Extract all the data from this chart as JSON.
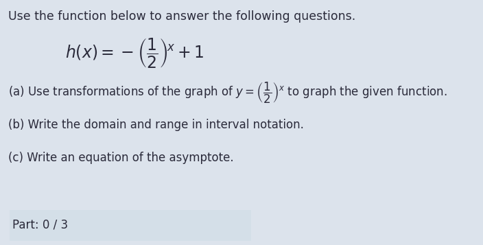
{
  "title_text": "Use the function below to answer the following questions.",
  "part_a_prefix": "(a) Use transformations of the graph of ",
  "part_a_math": "$y=\\left(\\dfrac{1}{2}\\right)^x$",
  "part_a_suffix": " to graph the given function.",
  "part_b": "(b) Write the domain and range in interval notation.",
  "part_c": "(c) Write an equation of the asymptote.",
  "part_label": "Part: 0 / 3",
  "main_bg": "#dce3ec",
  "part_box_bg": "#c8d4df",
  "part_box_stripe": "#d4dfe8",
  "text_color": "#2a2a3a",
  "title_fontsize": 12.5,
  "body_fontsize": 12,
  "func_fontsize": 17
}
